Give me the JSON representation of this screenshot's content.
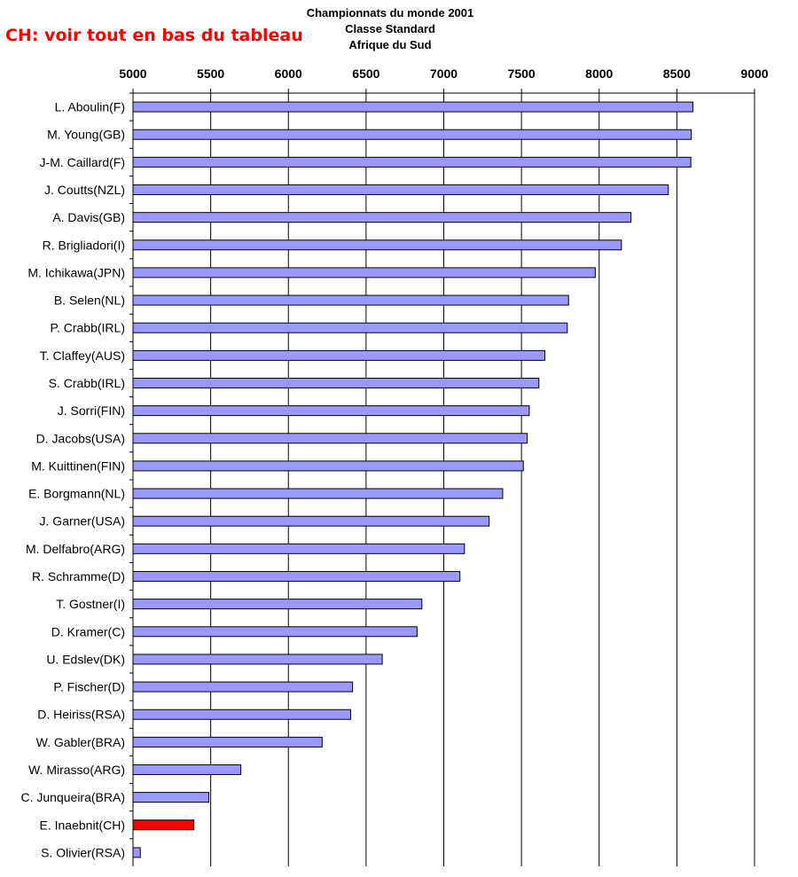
{
  "note": "CH: voir tout en bas du tableau",
  "chart_data": {
    "type": "bar",
    "orientation": "horizontal",
    "title": [
      "Championnats du monde 2001",
      "Classe Standard",
      "Afrique du Sud"
    ],
    "xlabel": "",
    "ylabel": "",
    "xlim": [
      5000,
      9000
    ],
    "xticks": [
      5000,
      5500,
      6000,
      6500,
      7000,
      7500,
      8000,
      8500,
      9000
    ],
    "grid": "vertical",
    "legend": "none",
    "bar_color": "#9999ff",
    "highlight_color": "#ff0000",
    "highlight_category": "E. Inaebnit(CH)",
    "categories": [
      "L. Aboulin(F)",
      "M. Young(GB)",
      "J-M. Caillard(F)",
      "J. Coutts(NZL)",
      "A. Davis(GB)",
      "R. Brigliadori(I)",
      "M. Ichikawa(JPN)",
      "B. Selen(NL)",
      "P. Crabb(IRL)",
      "T. Claffey(AUS)",
      "S. Crabb(IRL)",
      "J. Sorri(FIN)",
      "D. Jacobs(USA)",
      "M. Kuittinen(FIN)",
      "E. Borgmann(NL)",
      "J. Garner(USA)",
      "M. Delfabro(ARG)",
      "R. Schramme(D)",
      "T. Gostner(I)",
      "D. Kramer(C)",
      "U. Edslev(DK)",
      "P. Fischer(D)",
      "D. Heiriss(RSA)",
      "W. Gabler(BRA)",
      "W. Mirasso(ARG)",
      "C. Junqueira(BRA)",
      "E. Inaebnit(CH)",
      "S. Olivier(RSA)"
    ],
    "values": [
      8603,
      8593,
      8590,
      8445,
      8205,
      8143,
      7975,
      7803,
      7795,
      7650,
      7612,
      7550,
      7537,
      7512,
      7379,
      7292,
      7133,
      7104,
      6859,
      6828,
      6604,
      6413,
      6401,
      6217,
      5694,
      5488,
      5392,
      5047
    ]
  }
}
